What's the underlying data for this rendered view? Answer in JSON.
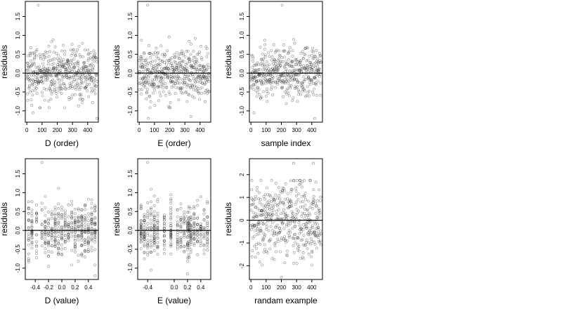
{
  "colors": {
    "point": "#333333",
    "axis": "#000000",
    "background": "#ffffff"
  },
  "chart_data": [
    {
      "type": "scatter",
      "title": "",
      "xlabel": "D (order)",
      "ylabel": "residuals",
      "xlim": [
        -10,
        470
      ],
      "ylim": [
        -1.3,
        1.9
      ],
      "xticks": [
        0,
        100,
        200,
        300,
        400
      ],
      "xtick_labels": [
        "0",
        "100",
        "200",
        "300",
        "400"
      ],
      "yticks": [
        -1.0,
        -0.5,
        0.0,
        0.5,
        1.0,
        1.5
      ],
      "ytick_labels": [
        "-1.0",
        "-0.5",
        "0.0",
        "0.5",
        "1.0",
        "1.5"
      ],
      "hline": 0,
      "grid": false,
      "x_mode": "index",
      "n": 460,
      "x_min": 0,
      "x_max": 460,
      "y_mean": 0.0,
      "y_sd": 0.4,
      "extremes": [
        [
          75,
          1.8
        ],
        [
          460,
          -1.2
        ],
        [
          40,
          -1.05
        ]
      ],
      "points": []
    },
    {
      "type": "scatter",
      "title": "",
      "xlabel": "E (order)",
      "ylabel": "residuals",
      "xlim": [
        -10,
        470
      ],
      "ylim": [
        -1.3,
        1.9
      ],
      "xticks": [
        0,
        100,
        200,
        300,
        400
      ],
      "xtick_labels": [
        "0",
        "100",
        "200",
        "300",
        "400"
      ],
      "yticks": [
        -1.0,
        -0.5,
        0.0,
        0.5,
        1.0,
        1.5
      ],
      "ytick_labels": [
        "-1.0",
        "-0.5",
        "0.0",
        "0.5",
        "1.0",
        "1.5"
      ],
      "hline": 0,
      "grid": false,
      "x_mode": "index",
      "n": 460,
      "x_min": 0,
      "x_max": 460,
      "y_mean": 0.0,
      "y_sd": 0.4,
      "extremes": [
        [
          55,
          1.8
        ],
        [
          340,
          -1.15
        ],
        [
          60,
          -1.2
        ]
      ],
      "points": []
    },
    {
      "type": "scatter",
      "title": "",
      "xlabel": "sample index",
      "ylabel": "residuals",
      "xlim": [
        -10,
        470
      ],
      "ylim": [
        -1.3,
        1.9
      ],
      "xticks": [
        0,
        100,
        200,
        300,
        400
      ],
      "xtick_labels": [
        "0",
        "100",
        "200",
        "300",
        "400"
      ],
      "yticks": [
        -1.0,
        -0.5,
        0.0,
        0.5,
        1.0,
        1.5
      ],
      "ytick_labels": [
        "-1.0",
        "-0.5",
        "0.0",
        "0.5",
        "1.0",
        "1.5"
      ],
      "hline": 0,
      "grid": false,
      "x_mode": "index",
      "n": 460,
      "x_min": 0,
      "x_max": 460,
      "y_mean": 0.0,
      "y_sd": 0.4,
      "extremes": [
        [
          205,
          1.8
        ],
        [
          420,
          -1.2
        ],
        [
          20,
          -1.05
        ]
      ],
      "points": []
    },
    {
      "type": "scatter",
      "title": "",
      "xlabel": "D (value)",
      "ylabel": "residuals",
      "xlim": [
        -0.55,
        0.55
      ],
      "ylim": [
        -1.3,
        1.9
      ],
      "xticks": [
        -0.4,
        -0.2,
        0.0,
        0.2,
        0.4
      ],
      "xtick_labels": [
        "-0.4",
        "-0.2",
        "0.0",
        "0.2",
        "0.4"
      ],
      "yticks": [
        -1.0,
        -0.5,
        0.0,
        0.5,
        1.0,
        1.5
      ],
      "ytick_labels": [
        "-1.0",
        "-0.5",
        "0.0",
        "0.5",
        "1.0",
        "1.5"
      ],
      "hline": 0,
      "grid": false,
      "x_mode": "values",
      "x_values": [
        -0.5,
        -0.45,
        -0.38,
        -0.3,
        -0.25,
        -0.2,
        -0.15,
        -0.1,
        -0.05,
        0.0,
        0.05,
        0.1,
        0.15,
        0.2,
        0.25,
        0.3,
        0.35,
        0.4,
        0.45,
        0.5
      ],
      "n": 460,
      "y_mean": 0.0,
      "y_sd": 0.4,
      "extremes": [
        [
          -0.3,
          1.8
        ],
        [
          0.5,
          -1.2
        ],
        [
          -0.2,
          -0.95
        ]
      ],
      "points": []
    },
    {
      "type": "scatter",
      "title": "",
      "xlabel": "E (value)",
      "ylabel": "residuals",
      "xlim": [
        -0.55,
        0.55
      ],
      "ylim": [
        -1.3,
        1.9
      ],
      "xticks": [
        -0.4,
        0.0,
        0.2,
        0.4
      ],
      "xtick_labels": [
        "-0.4",
        "0.0",
        "0.2",
        "0.4"
      ],
      "yticks": [
        -1.0,
        -0.5,
        0.0,
        0.5,
        1.0,
        1.5
      ],
      "ytick_labels": [
        "-1.0",
        "-0.5",
        "0.0",
        "0.5",
        "1.0",
        "1.5"
      ],
      "hline": 0,
      "grid": false,
      "x_mode": "values",
      "x_values": [
        -0.5,
        -0.45,
        -0.4,
        -0.35,
        -0.3,
        -0.25,
        -0.15,
        -0.05,
        0.05,
        0.1,
        0.15,
        0.2,
        0.22,
        0.25,
        0.3,
        0.35,
        0.4,
        0.45,
        0.5
      ],
      "n": 460,
      "y_mean": 0.0,
      "y_sd": 0.4,
      "extremes": [
        [
          -0.4,
          1.8
        ],
        [
          0.2,
          -1.15
        ],
        [
          -0.35,
          -1.05
        ]
      ],
      "points": []
    },
    {
      "type": "scatter",
      "title": "",
      "xlabel": "randam example",
      "ylabel": "residuals",
      "xlim": [
        -10,
        470
      ],
      "ylim": [
        -2.6,
        2.7
      ],
      "xticks": [
        0,
        100,
        200,
        300,
        400
      ],
      "xtick_labels": [
        "0",
        "100",
        "200",
        "300",
        "400"
      ],
      "yticks": [
        -2,
        -1,
        0,
        1,
        2
      ],
      "ytick_labels": [
        "-2",
        "-1",
        "0",
        "1",
        "2"
      ],
      "hline": 0,
      "grid": false,
      "x_mode": "index",
      "n": 460,
      "x_min": 0,
      "x_max": 460,
      "y_mean": 0.0,
      "y_sd": 1.0,
      "extremes": [
        [
          280,
          2.5
        ],
        [
          410,
          2.5
        ],
        [
          200,
          -2.5
        ]
      ],
      "points": []
    }
  ]
}
